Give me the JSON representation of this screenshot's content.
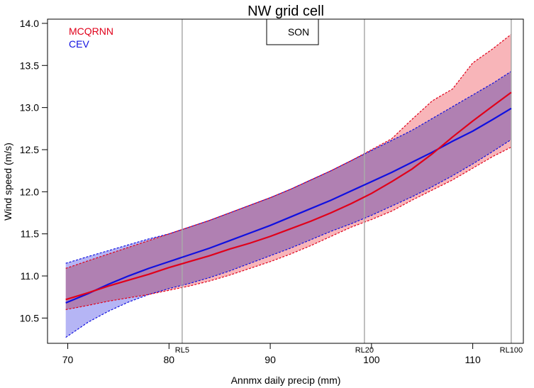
{
  "chart_data": {
    "type": "line",
    "title": "NW grid cell",
    "xlabel": "Annmx daily precip (mm)",
    "ylabel": "Wind speed (m/s)",
    "xlim": [
      68,
      115
    ],
    "ylim": [
      10.2,
      14.05
    ],
    "xticks": [
      70,
      80,
      90,
      100,
      110
    ],
    "yticks": [
      10.5,
      11.0,
      11.5,
      12.0,
      12.5,
      13.0,
      13.5,
      14.0
    ],
    "ytick_labels": [
      "10.5",
      "11.0",
      "11.5",
      "12.0",
      "12.5",
      "13.0",
      "13.5",
      "14.0"
    ],
    "season_label": "SON",
    "legend": {
      "position": "top-left"
    },
    "return_levels": [
      {
        "label": "RL5",
        "x": 81.3
      },
      {
        "label": "RL20",
        "x": 99.3
      },
      {
        "label": "RL100",
        "x": 113.8
      }
    ],
    "series": [
      {
        "name": "MCQRNN",
        "color": "#e0001a",
        "fill": "#f7a8ad",
        "x": [
          69.8,
          72,
          74,
          76,
          78,
          80,
          82,
          84,
          86,
          88,
          90,
          92,
          94,
          96,
          98,
          100,
          102,
          104,
          106,
          108,
          110,
          112,
          113.8
        ],
        "values": [
          10.72,
          10.8,
          10.88,
          10.95,
          11.02,
          11.1,
          11.17,
          11.24,
          11.32,
          11.39,
          11.47,
          11.56,
          11.65,
          11.75,
          11.86,
          11.98,
          12.12,
          12.27,
          12.45,
          12.65,
          12.84,
          13.02,
          13.18
        ],
        "lower": [
          10.6,
          10.65,
          10.7,
          10.74,
          10.78,
          10.83,
          10.88,
          10.94,
          11.01,
          11.09,
          11.17,
          11.26,
          11.36,
          11.47,
          11.58,
          11.67,
          11.77,
          11.9,
          12.02,
          12.14,
          12.28,
          12.42,
          12.53
        ],
        "upper": [
          11.09,
          11.18,
          11.26,
          11.34,
          11.42,
          11.5,
          11.58,
          11.66,
          11.75,
          11.84,
          11.93,
          12.03,
          12.14,
          12.25,
          12.37,
          12.5,
          12.63,
          12.86,
          13.08,
          13.22,
          13.53,
          13.7,
          13.87
        ]
      },
      {
        "name": "CEV",
        "color": "#1010e0",
        "fill": "#a8a8f4",
        "x": [
          69.8,
          72,
          74,
          76,
          78,
          80,
          82,
          84,
          86,
          88,
          90,
          92,
          94,
          96,
          98,
          100,
          102,
          104,
          106,
          108,
          110,
          112,
          113.8
        ],
        "values": [
          10.68,
          10.79,
          10.9,
          11.0,
          11.09,
          11.17,
          11.25,
          11.33,
          11.42,
          11.51,
          11.6,
          11.7,
          11.8,
          11.9,
          12.01,
          12.12,
          12.23,
          12.35,
          12.47,
          12.6,
          12.72,
          12.86,
          12.99
        ],
        "lower": [
          10.27,
          10.45,
          10.58,
          10.69,
          10.78,
          10.85,
          10.91,
          10.98,
          11.06,
          11.15,
          11.24,
          11.33,
          11.43,
          11.53,
          11.62,
          11.72,
          11.83,
          11.94,
          12.06,
          12.19,
          12.33,
          12.48,
          12.62
        ],
        "upper": [
          11.15,
          11.23,
          11.3,
          11.37,
          11.44,
          11.5,
          11.58,
          11.66,
          11.75,
          11.84,
          11.93,
          12.03,
          12.14,
          12.25,
          12.37,
          12.49,
          12.61,
          12.73,
          12.87,
          13.01,
          13.15,
          13.29,
          13.43
        ]
      }
    ]
  }
}
